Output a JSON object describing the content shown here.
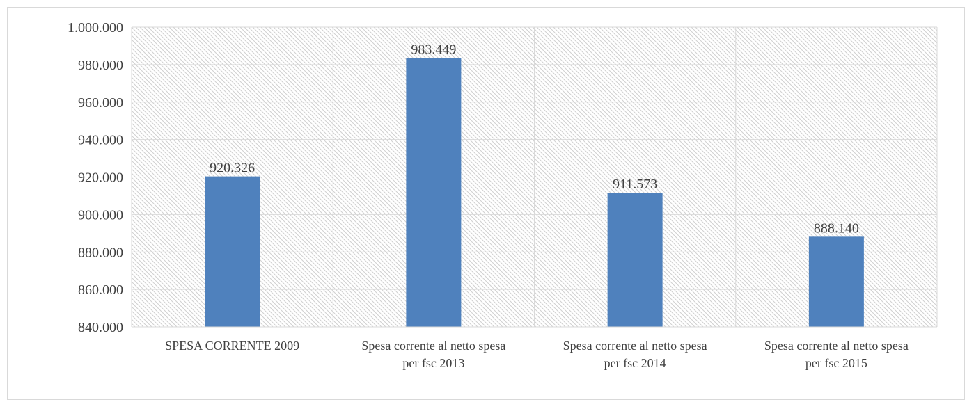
{
  "chart_data": {
    "type": "bar",
    "categories": [
      [
        "SPESA CORRENTE 2009"
      ],
      [
        "Spesa corrente al netto spesa",
        "per fsc 2013"
      ],
      [
        "Spesa corrente al netto spesa",
        "per fsc 2014"
      ],
      [
        "Spesa corrente al netto spesa",
        "per fsc 2015"
      ]
    ],
    "values": [
      920326,
      983449,
      911573,
      888140
    ],
    "data_labels": [
      "920.326",
      "983.449",
      "911.573",
      "888.140"
    ],
    "yticks": [
      "1.000.000",
      "980.000",
      "960.000",
      "940.000",
      "920.000",
      "900.000",
      "880.000",
      "860.000",
      "840.000"
    ],
    "ylim": [
      840000,
      1000000
    ],
    "ystep": 20000,
    "title": "",
    "xlabel": "",
    "ylabel": "",
    "grid": true,
    "bar_color": "#4f81bd",
    "grid_color": "#d9d9d9",
    "hatch_color": "#d0d0d0"
  }
}
